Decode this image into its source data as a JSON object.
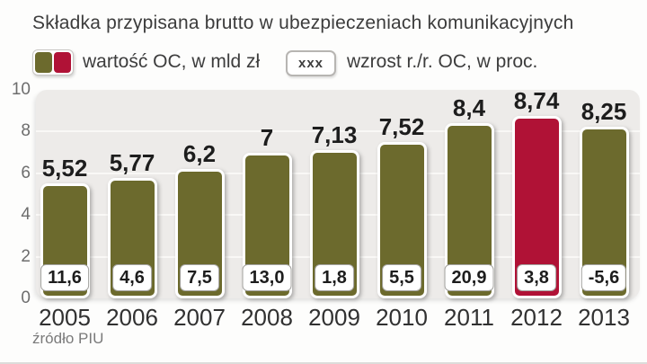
{
  "title": "Składka przypisana brutto w ubezpieczeniach komunikacyjnych",
  "legend": {
    "value_label": "wartość OC, w mld zł",
    "growth_box_text": "xxx",
    "growth_label": "wzrost r./r. OC, w proc."
  },
  "source": "źródło PIU",
  "colors": {
    "bar_olive": "#6c6a2d",
    "bar_red": "#b01236",
    "plot_background": "#edebe9",
    "gridline": "#f9f8f6",
    "text_dark": "#1d1d1d",
    "text_gray": "#6d6d6d"
  },
  "chart_data": {
    "type": "bar",
    "categories": [
      "2005",
      "2006",
      "2007",
      "2008",
      "2009",
      "2010",
      "2011",
      "2012",
      "2013"
    ],
    "series": [
      {
        "name": "wartość OC, w mld zł",
        "values": [
          5.52,
          5.77,
          6.2,
          7,
          7.13,
          7.52,
          8.4,
          8.74,
          8.25
        ],
        "labels": [
          "5,52",
          "5,77",
          "6,2",
          "7",
          "7,13",
          "7,52",
          "8,4",
          "8,74",
          "8,25"
        ]
      },
      {
        "name": "wzrost r./r. OC, w proc.",
        "values": [
          11.6,
          4.6,
          7.5,
          13.0,
          1.8,
          5.5,
          20.9,
          3.8,
          -5.6
        ],
        "labels": [
          "11,6",
          "4,6",
          "7,5",
          "13,0",
          "1,8",
          "5,5",
          "20,9",
          "3,8",
          "-5,6"
        ]
      }
    ],
    "highlight_category": "2012",
    "ylim": [
      0,
      10
    ],
    "yticks": [
      0,
      2,
      4,
      6,
      8,
      10
    ],
    "grid": true,
    "legend_position": "top"
  }
}
